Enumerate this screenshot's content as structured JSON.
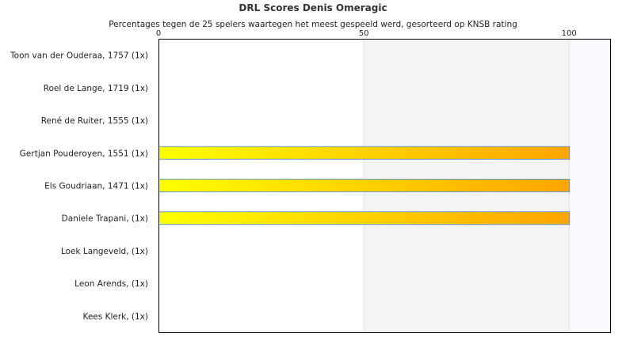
{
  "chart_data": {
    "type": "bar",
    "orientation": "horizontal",
    "title": "DRL Scores Denis Omeragic",
    "subtitle": "Percentages tegen de 25 spelers waartegen het meest gespeeld werd, gesorteerd op KNSB rating",
    "categories": [
      "Toon van der Ouderaa, 1757 (1x)",
      "Roel de Lange, 1719 (1x)",
      "René de Ruiter, 1555 (1x)",
      "Gertjan Pouderoyen, 1551 (1x)",
      "Els Goudriaan, 1471 (1x)",
      "Daniele Trapani,  (1x)",
      "Loek Langeveld,  (1x)",
      "Leon Arends,  (1x)",
      "Kees Klerk,  (1x)"
    ],
    "values": [
      0,
      0,
      0,
      100,
      100,
      100,
      0,
      0,
      0
    ],
    "xlim": [
      0,
      110
    ],
    "xticks": [
      0,
      50,
      100
    ],
    "xtick_labels": [
      "0",
      "50",
      "100"
    ],
    "x_axis_position": "top",
    "grid": true,
    "legend": "none",
    "colors": {
      "bar_start": "#ffff00",
      "bar_end": "#ffa500",
      "bar_border": "#6699cc",
      "band_light": "#f4f4f4",
      "band_lighter": "#f7f9fc",
      "axis": "#000000"
    }
  }
}
